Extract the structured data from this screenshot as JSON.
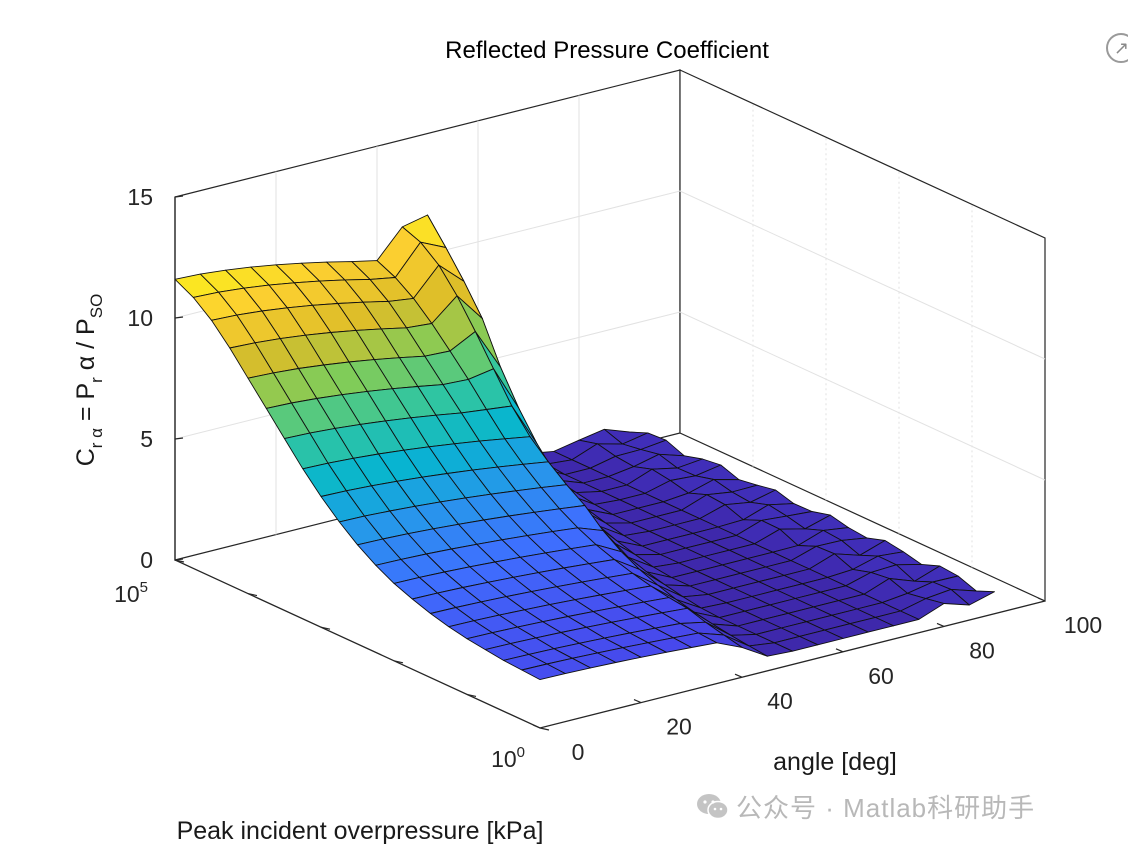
{
  "chart_data": {
    "type": "surface3d",
    "title": "Reflected Pressure Coefficient",
    "xlabel": "angle [deg]",
    "ylabel": "Peak incident overpressure [kPa]",
    "zlabel": "C_rα = P_rα / P_SO",
    "xlim": [
      0,
      100
    ],
    "zlim": [
      0,
      15
    ],
    "x_ticks": [
      "0",
      "20",
      "40",
      "60",
      "80",
      "100"
    ],
    "y_ticks": [
      {
        "base": "10",
        "exp": "0"
      },
      {
        "base": "10",
        "exp": "5"
      }
    ],
    "z_ticks": [
      "0",
      "5",
      "10",
      "15"
    ],
    "colormap": "parula",
    "grid": true,
    "angles_deg": [
      0,
      5,
      10,
      15,
      20,
      25,
      30,
      35,
      40,
      45,
      50,
      55,
      60,
      65,
      70,
      75,
      80,
      85,
      90
    ],
    "log10_pressure": [
      0,
      0.25,
      0.5,
      0.75,
      1,
      1.25,
      1.5,
      1.75,
      2,
      2.25,
      2.5,
      2.75,
      3,
      3.25,
      3.5,
      3.75,
      4,
      4.25,
      4.5,
      4.75,
      5
    ],
    "coefficient_at_0deg": [
      2.0,
      2.05,
      2.1,
      2.2,
      2.3,
      2.45,
      2.65,
      2.9,
      3.2,
      3.6,
      4.1,
      4.7,
      5.4,
      6.2,
      7.1,
      8.0,
      8.9,
      9.8,
      10.6,
      11.2,
      11.6
    ]
  },
  "ui": {
    "export_icon_glyph": "↗",
    "watermark_text": "公众号 · Matlab科研助手"
  }
}
